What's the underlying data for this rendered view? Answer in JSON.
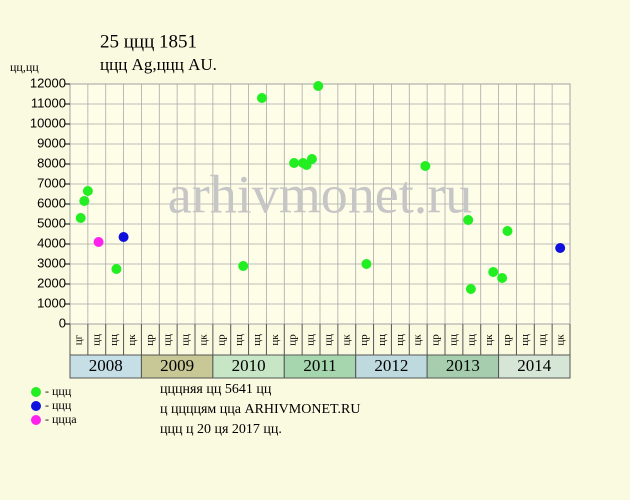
{
  "chart_data": {
    "type": "scatter",
    "title": "25 ццц 1851",
    "subtitle": "ццц Ag,ццц AU.",
    "y_label": "цц,цц",
    "watermark": "arhivmonet.ru",
    "xlim": [
      0,
      28
    ],
    "xticks": [
      0,
      1,
      2,
      3,
      4,
      5,
      6,
      7,
      8,
      9,
      10,
      11,
      12,
      13,
      14,
      15,
      16,
      17,
      18,
      19,
      20,
      21,
      22,
      23,
      24,
      25,
      26,
      27,
      28
    ],
    "ylim": [
      0,
      12000
    ],
    "yticks": [
      0,
      1000,
      2000,
      3000,
      4000,
      5000,
      6000,
      7000,
      8000,
      9000,
      10000,
      11000,
      12000
    ],
    "grid": true,
    "quarters": [
      "цг",
      "цц",
      "цц",
      "цк",
      "цр",
      "цц",
      "цц",
      "цк",
      "цр",
      "цц",
      "цц",
      "цк",
      "цр",
      "цц",
      "цц",
      "цк",
      "цр",
      "цц",
      "цц",
      "цк",
      "цр",
      "цц",
      "цц",
      "цк",
      "цр",
      "цц",
      "цц",
      "цк"
    ],
    "years": [
      "2008",
      "2009",
      "2010",
      "2011",
      "2012",
      "2013",
      "2014"
    ],
    "year_colors": [
      "#c6dfe6",
      "#c8c896",
      "#c6e6c6",
      "#a6d6ae",
      "#bedadf",
      "#a6ceae",
      "#d6e6d6"
    ],
    "series": [
      {
        "name": "- ццц",
        "color": "#22ee22",
        "x": [
          0.6,
          0.8,
          1.0,
          2.6,
          9.7,
          10.75,
          12.55,
          13.05,
          13.25,
          13.55,
          13.9,
          16.6,
          19.9,
          22.3,
          22.45,
          23.7,
          24.2,
          24.5
        ],
        "values": [
          5300,
          6150,
          6650,
          2750,
          2900,
          11300,
          8050,
          8050,
          7950,
          8250,
          11900,
          3000,
          7900,
          5200,
          1750,
          2600,
          2300,
          4650
        ]
      },
      {
        "name": "- ццц",
        "color": "#1010dd",
        "x": [
          3.0,
          27.45
        ],
        "values": [
          4350,
          3800
        ]
      },
      {
        "name": "- цццa",
        "color": "#ff22ee",
        "x": [
          1.6
        ],
        "values": [
          4100
        ]
      }
    ],
    "notes": [
      "цццняя цц 5641 цц",
      "ц ццццям цца ARHIVMONET.RU",
      "ццц ц 20 ця 2017 цц."
    ]
  }
}
